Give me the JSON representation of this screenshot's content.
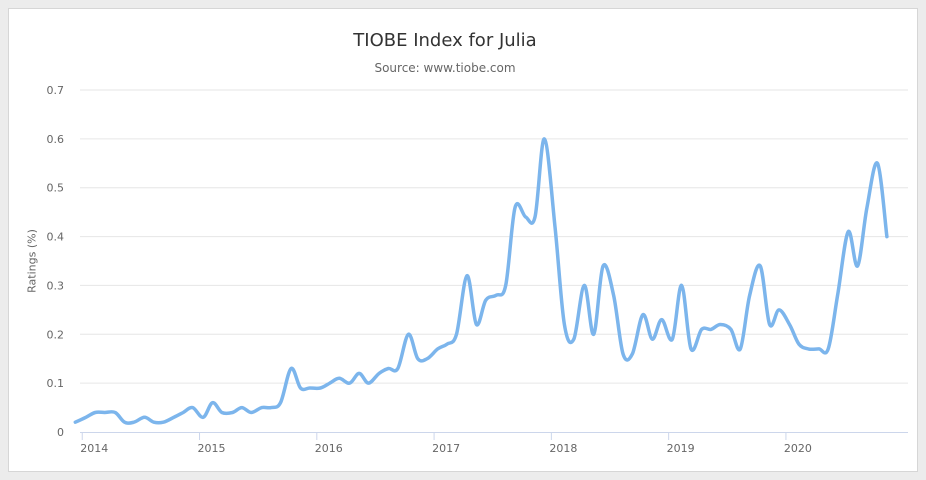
{
  "chart_data": {
    "type": "line",
    "title": "TIOBE Index for Julia",
    "subtitle": "Source: www.tiobe.com",
    "xlabel": "",
    "ylabel": "Ratings (%)",
    "ylim": [
      0,
      0.7
    ],
    "y_ticks": [
      "0",
      "0.1",
      "0.2",
      "0.3",
      "0.4",
      "0.5",
      "0.6",
      "0.7"
    ],
    "x_ticks": [
      "2014",
      "2015",
      "2016",
      "2017",
      "2018",
      "2019",
      "2020"
    ],
    "x_tick_values": [
      2014,
      2015,
      2016,
      2017,
      2018,
      2019,
      2020
    ],
    "xlim": [
      2013.87,
      2020.93
    ],
    "grid": true,
    "line_color": "#7cb5ec",
    "series": [
      {
        "x": [
          2013.83,
          2013.92,
          2014.0,
          2014.08,
          2014.17,
          2014.25,
          2014.33,
          2014.42,
          2014.5,
          2014.58,
          2014.67,
          2014.75,
          2014.83,
          2014.92,
          2015.0,
          2015.08,
          2015.17,
          2015.25,
          2015.33,
          2015.42,
          2015.5,
          2015.58,
          2015.67,
          2015.75,
          2015.83,
          2015.92,
          2016.0,
          2016.08,
          2016.17,
          2016.25,
          2016.33,
          2016.42,
          2016.5,
          2016.58,
          2016.67,
          2016.75,
          2016.83,
          2016.92,
          2017.0,
          2017.08,
          2017.17,
          2017.25,
          2017.33,
          2017.42,
          2017.5,
          2017.58,
          2017.67,
          2017.75,
          2017.83,
          2017.92,
          2018.0,
          2018.08,
          2018.17,
          2018.25,
          2018.33,
          2018.42,
          2018.5,
          2018.58,
          2018.67,
          2018.75,
          2018.83,
          2018.92,
          2019.0,
          2019.08,
          2019.17,
          2019.25,
          2019.33,
          2019.42,
          2019.5,
          2019.58,
          2019.67,
          2019.75,
          2019.83,
          2019.92,
          2020.0,
          2020.08,
          2020.17,
          2020.25,
          2020.33,
          2020.42,
          2020.5,
          2020.58,
          2020.67,
          2020.75
        ],
        "values": [
          0.02,
          0.03,
          0.04,
          0.04,
          0.04,
          0.02,
          0.02,
          0.03,
          0.02,
          0.02,
          0.03,
          0.04,
          0.05,
          0.03,
          0.06,
          0.04,
          0.04,
          0.05,
          0.04,
          0.05,
          0.05,
          0.06,
          0.13,
          0.09,
          0.09,
          0.09,
          0.1,
          0.11,
          0.1,
          0.12,
          0.1,
          0.12,
          0.13,
          0.13,
          0.2,
          0.15,
          0.15,
          0.17,
          0.18,
          0.2,
          0.32,
          0.22,
          0.27,
          0.28,
          0.3,
          0.46,
          0.44,
          0.44,
          0.6,
          0.42,
          0.22,
          0.19,
          0.3,
          0.2,
          0.34,
          0.28,
          0.16,
          0.16,
          0.24,
          0.19,
          0.23,
          0.19,
          0.3,
          0.17,
          0.21,
          0.21,
          0.22,
          0.21,
          0.17,
          0.28,
          0.34,
          0.22,
          0.25,
          0.22,
          0.18,
          0.17,
          0.17,
          0.17,
          0.28,
          0.41,
          0.34,
          0.46,
          0.55,
          0.4
        ]
      }
    ]
  }
}
